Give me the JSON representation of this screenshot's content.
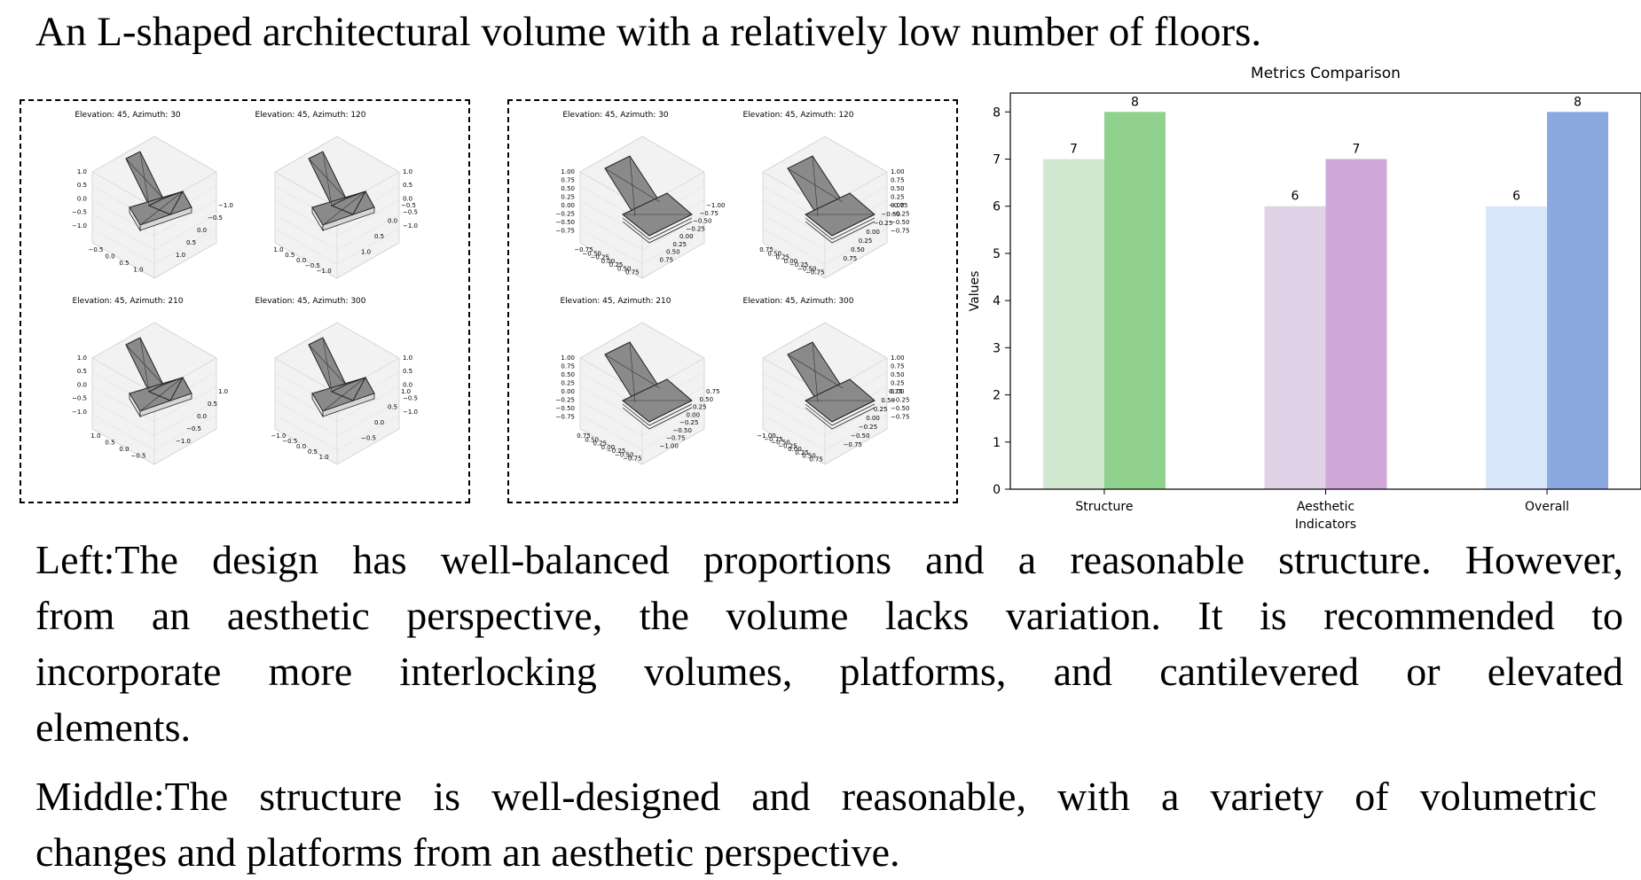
{
  "heading": "An L-shaped architectural volume with a relatively low number of floors.",
  "panels": {
    "left": {
      "views": [
        {
          "title": "Elevation: 45, Azimuth: 30",
          "y_ticks": [
            "1.0",
            "0.5",
            "0.0",
            "−0.5",
            "−1.0"
          ],
          "x_ticks": [
            "−0.5",
            "0.0",
            "0.5",
            "1.0"
          ],
          "r_ticks": [
            "−1.0",
            "−0.5",
            "0.0",
            "0.5",
            "1.0"
          ]
        },
        {
          "title": "Elevation: 45, Azimuth: 120",
          "z_ticks": [
            "1.0",
            "0.5",
            "0.0",
            "−0.5",
            "−1.0"
          ],
          "x_ticks": [
            "1.0",
            "0.5",
            "0.0",
            "−0.5",
            "−1.0"
          ],
          "r_ticks": [
            "−0.5",
            "0.0",
            "0.5",
            "1.0"
          ]
        },
        {
          "title": "Elevation: 45, Azimuth: 210",
          "y_ticks": [
            "1.0",
            "0.5",
            "0.0",
            "−0.5",
            "−1.0"
          ],
          "x_ticks": [
            "1.0",
            "0.5",
            "0.0",
            "−0.5"
          ],
          "r_ticks": [
            "1.0",
            "0.5",
            "0.0",
            "−0.5",
            "−1.0"
          ]
        },
        {
          "title": "Elevation: 45, Azimuth: 300",
          "z_ticks": [
            "1.0",
            "0.5",
            "0.0",
            "−0.5",
            "−1.0"
          ],
          "x_ticks": [
            "−1.0",
            "−0.5",
            "0.0",
            "0.5",
            "1.0"
          ],
          "r_ticks": [
            "1.0",
            "0.5",
            "0.0",
            "−0.5"
          ]
        }
      ]
    },
    "middle": {
      "views": [
        {
          "title": "Elevation: 45, Azimuth: 30",
          "y_ticks": [
            "1.00",
            "0.75",
            "0.50",
            "0.25",
            "0.00",
            "−0.25",
            "−0.50",
            "−0.75"
          ],
          "x_ticks": [
            "−0.75",
            "−0.50",
            "−0.25",
            "0.00",
            "0.25",
            "0.50",
            "0.75"
          ],
          "r_ticks": [
            "−1.00",
            "−0.75",
            "−0.50",
            "−0.25",
            "0.00",
            "0.25",
            "0.50",
            "0.75"
          ]
        },
        {
          "title": "Elevation: 45, Azimuth: 120",
          "z_ticks": [
            "1.00",
            "0.75",
            "0.50",
            "0.25",
            "0.00",
            "−0.25",
            "−0.50",
            "−0.75"
          ],
          "x_ticks": [
            "0.75",
            "0.50",
            "0.25",
            "0.00",
            "−0.25",
            "−0.50",
            "−0.75"
          ],
          "r_ticks": [
            "−0.75",
            "−0.50",
            "−0.25",
            "0.00",
            "0.25",
            "0.50",
            "0.75"
          ]
        },
        {
          "title": "Elevation: 45, Azimuth: 210",
          "y_ticks": [
            "1.00",
            "0.75",
            "0.50",
            "0.25",
            "0.00",
            "−0.25",
            "−0.50",
            "−0.75"
          ],
          "x_ticks": [
            "0.75",
            "0.50",
            "0.25",
            "0.00",
            "−0.25",
            "−0.50",
            "−0.75"
          ],
          "r_ticks": [
            "0.75",
            "0.50",
            "0.25",
            "0.00",
            "−0.25",
            "−0.50",
            "−0.75",
            "−1.00"
          ]
        },
        {
          "title": "Elevation: 45, Azimuth: 300",
          "z_ticks": [
            "1.00",
            "0.75",
            "0.50",
            "0.25",
            "0.00",
            "−0.25",
            "−0.50",
            "−0.75"
          ],
          "x_ticks": [
            "−1.00",
            "−0.75",
            "−0.50",
            "−0.25",
            "0.00",
            "0.25",
            "0.50",
            "0.75"
          ],
          "r_ticks": [
            "0.75",
            "0.50",
            "0.25",
            "0.00",
            "−0.25",
            "−0.50",
            "−0.75"
          ]
        }
      ]
    }
  },
  "chart_data": {
    "type": "bar",
    "title": "Metrics Comparison",
    "xlabel": "Indicators",
    "ylabel": "Values",
    "ylim": [
      0,
      8.4
    ],
    "yticks": [
      0,
      1,
      2,
      3,
      4,
      5,
      6,
      7,
      8
    ],
    "categories": [
      "Structure",
      "Aesthetic",
      "Overall"
    ],
    "bars": [
      {
        "category": "Structure",
        "values": [
          7,
          8
        ],
        "colors": [
          "#d1e8d1",
          "#90d18e"
        ]
      },
      {
        "category": "Aesthetic",
        "values": [
          6,
          7
        ],
        "colors": [
          "#e1d1e6",
          "#cfa7d8"
        ]
      },
      {
        "category": "Overall",
        "values": [
          6,
          8
        ],
        "colors": [
          "#d8e6fa",
          "#8ba9df"
        ]
      }
    ],
    "grid": false,
    "legend": "none"
  },
  "paragraphs": {
    "left": [
      "Left:The design has well-balanced proportions and a reasonable structure. However,",
      "from an aesthetic perspective, the volume lacks variation. It is recommended to",
      "incorporate more interlocking volumes, platforms, and cantilevered or elevated",
      "elements."
    ],
    "middle": [
      "Middle:The structure is well-designed and reasonable, with a variety of volumetric",
      "changes and platforms from an aesthetic perspective."
    ]
  }
}
